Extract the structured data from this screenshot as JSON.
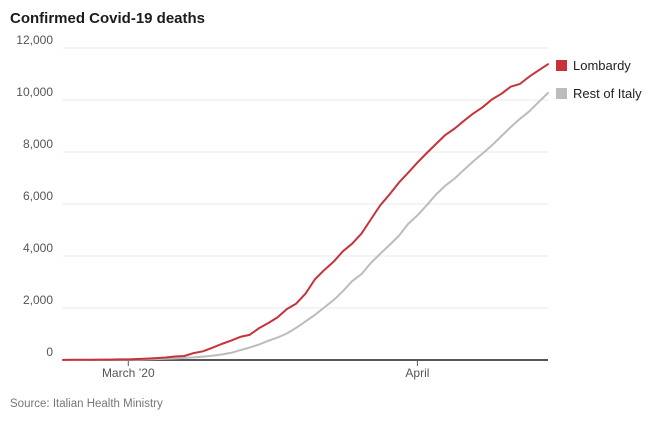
{
  "title": "Confirmed Covid-19 deaths",
  "source": "Source: Italian Health Ministry",
  "colors": {
    "lombardy": "#c63339",
    "rest_of_italy": "#bcbcbc",
    "gridline": "#e9e9e9",
    "axis": "#55565a",
    "tick_text": "#555555"
  },
  "legend": [
    {
      "label": "Lombardy",
      "color": "#c63339"
    },
    {
      "label": "Rest of Italy",
      "color": "#bcbcbc"
    }
  ],
  "chart_data": {
    "type": "line",
    "title": "Confirmed Covid-19 deaths",
    "xlabel": "",
    "ylabel": "",
    "ylim": [
      0,
      12000
    ],
    "grid": "horizontal",
    "legend_position": "right",
    "x": [
      "2020-02-23",
      "2020-02-24",
      "2020-02-25",
      "2020-02-26",
      "2020-02-27",
      "2020-02-28",
      "2020-02-29",
      "2020-03-01",
      "2020-03-02",
      "2020-03-03",
      "2020-03-04",
      "2020-03-05",
      "2020-03-06",
      "2020-03-07",
      "2020-03-08",
      "2020-03-09",
      "2020-03-10",
      "2020-03-11",
      "2020-03-12",
      "2020-03-13",
      "2020-03-14",
      "2020-03-15",
      "2020-03-16",
      "2020-03-17",
      "2020-03-18",
      "2020-03-19",
      "2020-03-20",
      "2020-03-21",
      "2020-03-22",
      "2020-03-23",
      "2020-03-24",
      "2020-03-25",
      "2020-03-26",
      "2020-03-27",
      "2020-03-28",
      "2020-03-29",
      "2020-03-30",
      "2020-03-31",
      "2020-04-01",
      "2020-04-02",
      "2020-04-03",
      "2020-04-04",
      "2020-04-05",
      "2020-04-06",
      "2020-04-07",
      "2020-04-08",
      "2020-04-09",
      "2020-04-10",
      "2020-04-11",
      "2020-04-12",
      "2020-04-13",
      "2020-04-14",
      "2020-04-15"
    ],
    "series": [
      {
        "name": "Lombardy",
        "color": "#c63339",
        "values": [
          2,
          6,
          9,
          9,
          14,
          17,
          23,
          24,
          38,
          55,
          73,
          98,
          135,
          154,
          267,
          333,
          468,
          617,
          744,
          890,
          966,
          1218,
          1420,
          1640,
          1959,
          2168,
          2549,
          3095,
          3456,
          3776,
          4178,
          4474,
          4861,
          5402,
          5944,
          6360,
          6818,
          7199,
          7593,
          7960,
          8311,
          8656,
          8905,
          9202,
          9484,
          9722,
          10022,
          10238,
          10511,
          10621,
          10901,
          11142,
          11377
        ]
      },
      {
        "name": "Rest of Italy",
        "color": "#bcbcbc",
        "values": [
          1,
          1,
          1,
          3,
          3,
          4,
          6,
          10,
          14,
          24,
          34,
          50,
          62,
          79,
          99,
          130,
          163,
          210,
          272,
          376,
          475,
          591,
          738,
          863,
          1019,
          1237,
          1483,
          1730,
          2020,
          2301,
          2642,
          3029,
          3304,
          3732,
          4079,
          4419,
          4773,
          5229,
          5562,
          5955,
          6370,
          6706,
          6982,
          7321,
          7643,
          7947,
          8257,
          8611,
          8957,
          9278,
          9564,
          9925,
          10268
        ]
      }
    ],
    "y_ticks": [
      {
        "value": 0,
        "label": "0"
      },
      {
        "value": 2000,
        "label": "2,000"
      },
      {
        "value": 4000,
        "label": "4,000"
      },
      {
        "value": 6000,
        "label": "6,000"
      },
      {
        "value": 8000,
        "label": "8,000"
      },
      {
        "value": 10000,
        "label": "10,000"
      },
      {
        "value": 12000,
        "label": "12,000"
      }
    ],
    "x_ticks": [
      {
        "index": 7,
        "label": "March ’20"
      },
      {
        "index": 38,
        "label": "April"
      }
    ]
  }
}
